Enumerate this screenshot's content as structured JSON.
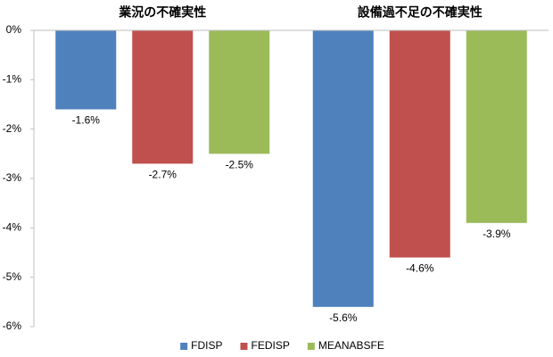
{
  "chart_data": {
    "type": "bar",
    "categories": [
      "業況の不確実性",
      "設備過不足の不確実性"
    ],
    "series": [
      {
        "name": "FDISP",
        "color": "#4f81bd",
        "values": [
          -1.6,
          -5.6
        ],
        "value_labels": [
          "-1.6%",
          "-5.6%"
        ]
      },
      {
        "name": "FEDISP",
        "color": "#c0504d",
        "values": [
          -2.7,
          -4.6
        ],
        "value_labels": [
          "-2.7%",
          "-4.6%"
        ]
      },
      {
        "name": "MEANABSFE",
        "color": "#9bbb59",
        "values": [
          -2.5,
          -3.9
        ],
        "value_labels": [
          "-2.5%",
          "-3.9%"
        ]
      }
    ],
    "ylim": [
      -6,
      0
    ],
    "yticks": [
      {
        "value": 0,
        "label": "0%"
      },
      {
        "value": -1,
        "label": "-1%"
      },
      {
        "value": -2,
        "label": "-2%"
      },
      {
        "value": -3,
        "label": "-3%"
      },
      {
        "value": -4,
        "label": "-4%"
      },
      {
        "value": -5,
        "label": "-5%"
      },
      {
        "value": -6,
        "label": "-6%"
      }
    ],
    "legend": "bottom"
  }
}
